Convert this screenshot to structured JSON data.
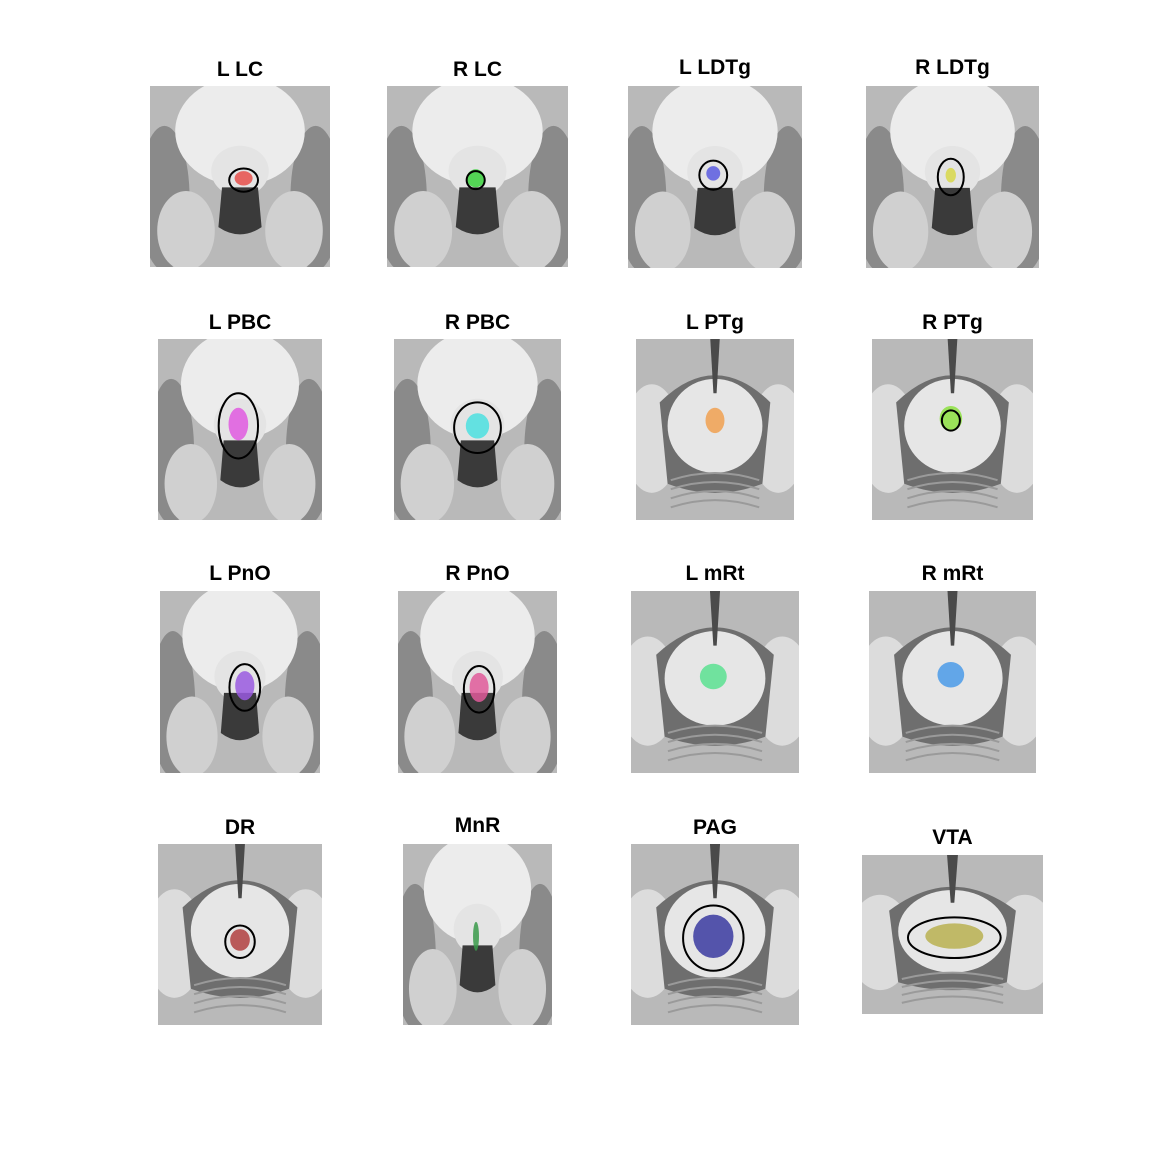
{
  "figure": {
    "panels": [
      {
        "title": "L LC",
        "view": "pons",
        "region_color": "#e8504b",
        "outline": true
      },
      {
        "title": "R LC",
        "view": "pons",
        "region_color": "#39d23c",
        "outline": true
      },
      {
        "title": "L LDTg",
        "view": "pons",
        "region_color": "#5a5ce0",
        "outline": true
      },
      {
        "title": "R LDTg",
        "view": "pons",
        "region_color": "#d8d84a",
        "outline": true
      },
      {
        "title": "L PBC",
        "view": "pons",
        "region_color": "#e05ae0",
        "outline": true
      },
      {
        "title": "R PBC",
        "view": "pons",
        "region_color": "#4ce0e0",
        "outline": true
      },
      {
        "title": "L PTg",
        "view": "midbrain",
        "region_color": "#f0a050",
        "outline": false
      },
      {
        "title": "R PTg",
        "view": "midbrain",
        "region_color": "#8ce040",
        "outline": true
      },
      {
        "title": "L PnO",
        "view": "pons",
        "region_color": "#9a5ae0",
        "outline": true
      },
      {
        "title": "R PnO",
        "view": "pons",
        "region_color": "#e05a9a",
        "outline": true
      },
      {
        "title": "L mRt",
        "view": "midbrain",
        "region_color": "#5ae090",
        "outline": false
      },
      {
        "title": "R mRt",
        "view": "midbrain",
        "region_color": "#4a9ae8",
        "outline": false
      },
      {
        "title": "DR",
        "view": "midbrain",
        "region_color": "#b04040",
        "outline": true
      },
      {
        "title": "MnR",
        "view": "pons",
        "region_color": "#3a9a4a",
        "outline": false
      },
      {
        "title": "PAG",
        "view": "midbrain",
        "region_color": "#3a3aa0",
        "outline": true
      },
      {
        "title": "VTA",
        "view": "midbrain",
        "region_color": "#b8b050",
        "outline": true
      }
    ]
  }
}
